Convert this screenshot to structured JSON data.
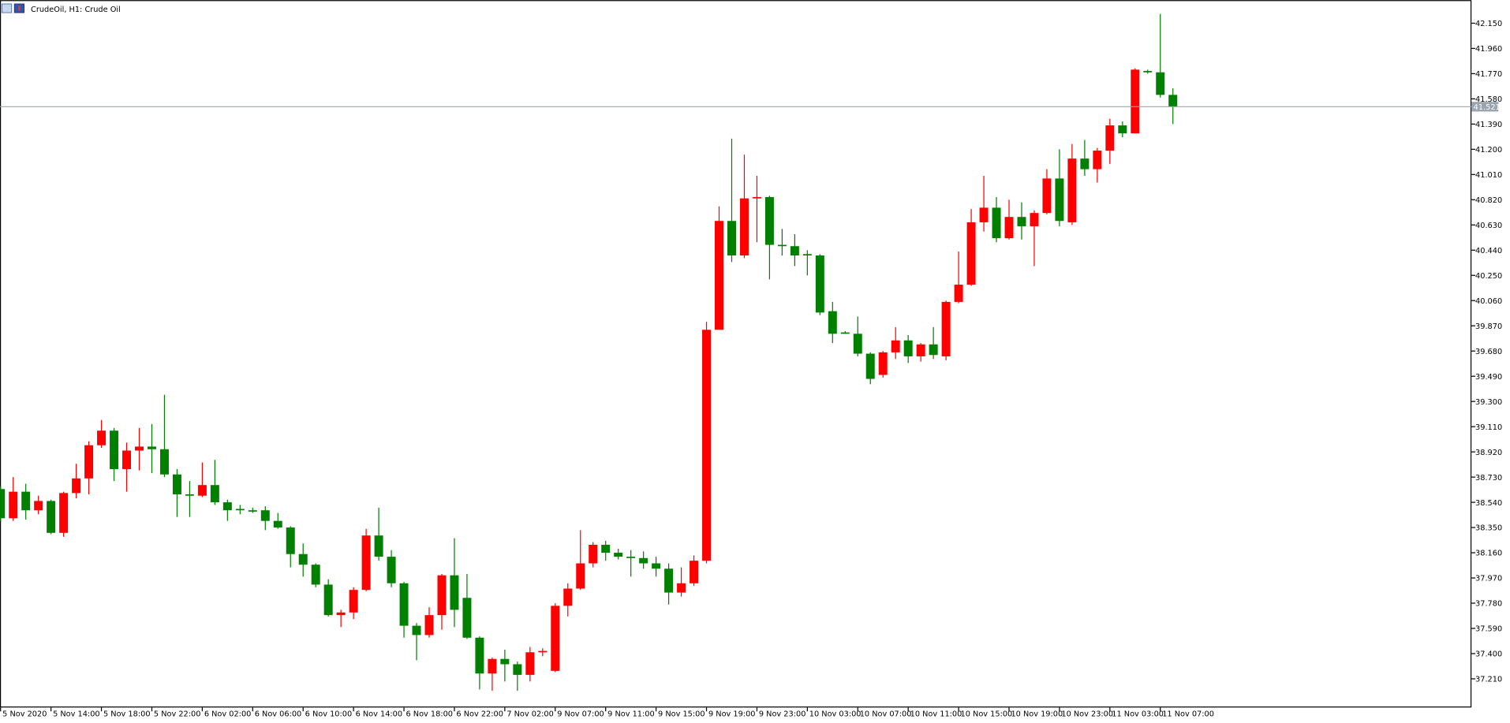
{
  "chart_data": {
    "type": "candlestick",
    "title": "CrudeOil, H1:  Crude Oil",
    "up_color": "#ff0000",
    "down_color": "#008000",
    "categories": [
      "5 Nov 2020",
      null,
      null,
      null,
      "5 Nov 14:00",
      null,
      null,
      null,
      "5 Nov 18:00",
      null,
      null,
      null,
      "5 Nov 22:00",
      null,
      null,
      null,
      "6 Nov 02:00",
      null,
      null,
      null,
      "6 Nov 06:00",
      null,
      null,
      null,
      "6 Nov 10:00",
      null,
      null,
      null,
      "6 Nov 14:00",
      null,
      null,
      null,
      "6 Nov 18:00",
      null,
      null,
      null,
      "6 Nov 22:00",
      null,
      null,
      null,
      "7 Nov 02:00",
      null,
      null,
      null,
      "9 Nov 07:00",
      null,
      null,
      null,
      "9 Nov 11:00",
      null,
      null,
      null,
      "9 Nov 15:00",
      null,
      null,
      null,
      "9 Nov 19:00",
      null,
      null,
      null,
      "9 Nov 23:00",
      null,
      null,
      null,
      "10 Nov 03:00",
      null,
      null,
      null,
      "10 Nov 07:00",
      null,
      null,
      null,
      "10 Nov 11:00",
      null,
      null,
      null,
      "10 Nov 15:00",
      null,
      null,
      null,
      "10 Nov 19:00",
      null,
      null,
      null,
      "10 Nov 23:00",
      null,
      null,
      null,
      "11 Nov 03:00",
      null,
      null,
      null,
      "11 Nov 07:00",
      null
    ],
    "open": [
      38.64,
      38.42,
      38.62,
      38.48,
      38.55,
      38.31,
      38.61,
      38.72,
      38.97,
      39.08,
      38.79,
      38.93,
      38.96,
      38.94,
      38.75,
      38.6,
      38.59,
      38.67,
      38.54,
      38.49,
      38.48,
      38.48,
      38.4,
      38.35,
      38.15,
      38.07,
      37.92,
      37.69,
      37.71,
      37.88,
      38.29,
      38.13,
      37.93,
      37.61,
      37.54,
      37.69,
      37.99,
      37.82,
      37.52,
      37.25,
      37.36,
      37.32,
      37.24,
      37.41,
      37.27,
      37.76,
      37.89,
      38.08,
      38.22,
      38.16,
      38.13,
      38.12,
      38.08,
      38.04,
      37.86,
      37.93,
      38.1,
      39.84,
      40.66,
      40.4,
      40.83,
      40.84,
      40.48,
      40.47,
      40.41,
      40.4,
      39.98,
      39.82,
      39.81,
      39.66,
      39.5,
      39.67,
      39.76,
      39.64,
      39.73,
      39.64,
      40.05,
      40.18,
      40.65,
      40.76,
      40.53,
      40.69,
      40.62,
      40.72,
      40.98,
      40.65,
      41.13,
      41.05,
      41.19,
      41.38,
      41.32,
      41.79,
      41.78,
      41.61
    ],
    "high": [
      38.66,
      38.73,
      38.68,
      38.59,
      38.56,
      38.62,
      38.83,
      39.0,
      39.16,
      39.1,
      38.99,
      39.1,
      39.13,
      39.35,
      38.79,
      38.7,
      38.84,
      38.86,
      38.56,
      38.52,
      38.5,
      38.51,
      38.46,
      38.36,
      38.23,
      38.08,
      37.96,
      37.73,
      37.9,
      38.34,
      38.5,
      38.18,
      37.94,
      37.63,
      37.75,
      38.0,
      38.27,
      38.0,
      37.53,
      37.37,
      37.43,
      37.34,
      37.45,
      37.44,
      37.78,
      37.93,
      38.33,
      38.24,
      38.25,
      38.19,
      38.18,
      38.17,
      38.13,
      38.08,
      38.05,
      38.14,
      39.9,
      40.77,
      41.28,
      41.16,
      41.0,
      40.85,
      40.6,
      40.56,
      40.44,
      40.41,
      40.05,
      39.83,
      39.94,
      39.67,
      39.68,
      39.86,
      39.8,
      39.74,
      39.86,
      40.06,
      40.43,
      40.75,
      41.0,
      40.84,
      40.82,
      40.8,
      40.74,
      41.05,
      41.2,
      41.24,
      41.27,
      41.21,
      41.43,
      41.41,
      41.81,
      41.8,
      42.22,
      41.66
    ],
    "low": [
      38.4,
      38.4,
      38.41,
      38.45,
      38.3,
      38.28,
      38.57,
      38.6,
      38.95,
      38.7,
      38.62,
      38.78,
      38.76,
      38.73,
      38.43,
      38.43,
      38.58,
      38.52,
      38.4,
      38.45,
      38.46,
      38.33,
      38.34,
      38.05,
      37.98,
      37.9,
      37.68,
      37.6,
      37.66,
      37.87,
      38.1,
      37.9,
      37.52,
      37.35,
      37.52,
      37.58,
      37.6,
      37.51,
      37.13,
      37.12,
      37.19,
      37.12,
      37.19,
      37.38,
      37.26,
      37.68,
      37.88,
      38.05,
      38.1,
      38.11,
      37.98,
      38.04,
      37.98,
      37.77,
      37.83,
      37.91,
      38.08,
      39.84,
      40.35,
      40.38,
      40.5,
      40.22,
      40.4,
      40.32,
      40.25,
      39.95,
      39.74,
      39.81,
      39.64,
      39.43,
      39.48,
      39.62,
      39.59,
      39.6,
      39.62,
      39.61,
      40.04,
      40.17,
      40.58,
      40.5,
      40.52,
      40.52,
      40.32,
      40.71,
      40.62,
      40.63,
      41.0,
      40.95,
      41.09,
      41.29,
      41.32,
      41.77,
      41.59,
      41.39
    ],
    "close": [
      38.42,
      38.62,
      38.48,
      38.55,
      38.31,
      38.61,
      38.72,
      38.97,
      39.08,
      38.79,
      38.93,
      38.96,
      38.94,
      38.75,
      38.6,
      38.59,
      38.67,
      38.54,
      38.48,
      38.48,
      38.47,
      38.4,
      38.35,
      38.15,
      38.07,
      37.92,
      37.69,
      37.71,
      37.88,
      38.29,
      38.13,
      37.93,
      37.61,
      37.54,
      37.69,
      37.99,
      37.73,
      37.52,
      37.25,
      37.36,
      37.32,
      37.24,
      37.41,
      37.42,
      37.76,
      37.89,
      38.08,
      38.22,
      38.16,
      38.13,
      38.12,
      38.08,
      38.04,
      37.86,
      37.93,
      38.1,
      39.84,
      40.66,
      40.4,
      40.83,
      40.84,
      40.48,
      40.47,
      40.4,
      40.4,
      39.97,
      39.81,
      39.81,
      39.66,
      39.47,
      39.67,
      39.76,
      39.64,
      39.73,
      39.65,
      40.05,
      40.18,
      40.65,
      40.76,
      40.53,
      40.69,
      40.62,
      40.72,
      40.98,
      40.66,
      41.13,
      41.05,
      41.19,
      41.38,
      41.32,
      41.8,
      41.78,
      41.61,
      41.52
    ],
    "ylim": [
      36.994,
      42.324
    ],
    "yticks": [
      {
        "value": 42.15,
        "label": "42.150"
      },
      {
        "value": 41.96,
        "label": "41.960"
      },
      {
        "value": 41.77,
        "label": "41.770"
      },
      {
        "value": 41.58,
        "label": "41.580"
      },
      {
        "value": 41.39,
        "label": "41.390"
      },
      {
        "value": 41.2,
        "label": "41.200"
      },
      {
        "value": 41.01,
        "label": "41.010"
      },
      {
        "value": 40.82,
        "label": "40.820"
      },
      {
        "value": 40.63,
        "label": "40.630"
      },
      {
        "value": 40.44,
        "label": "40.440"
      },
      {
        "value": 40.25,
        "label": "40.250"
      },
      {
        "value": 40.06,
        "label": "40.060"
      },
      {
        "value": 39.87,
        "label": "39.870"
      },
      {
        "value": 39.68,
        "label": "39.680"
      },
      {
        "value": 39.49,
        "label": "39.490"
      },
      {
        "value": 39.3,
        "label": "39.300"
      },
      {
        "value": 39.11,
        "label": "39.110"
      },
      {
        "value": 38.92,
        "label": "38.920"
      },
      {
        "value": 38.73,
        "label": "38.730"
      },
      {
        "value": 38.54,
        "label": "38.540"
      },
      {
        "value": 38.35,
        "label": "38.350"
      },
      {
        "value": 38.16,
        "label": "38.160"
      },
      {
        "value": 37.97,
        "label": "37.970"
      },
      {
        "value": 37.78,
        "label": "37.780"
      },
      {
        "value": 37.59,
        "label": "37.590"
      },
      {
        "value": 37.4,
        "label": "37.400"
      },
      {
        "value": 37.21,
        "label": "37.210"
      }
    ],
    "current_price": {
      "value": 41.521,
      "label": "41.521"
    }
  }
}
